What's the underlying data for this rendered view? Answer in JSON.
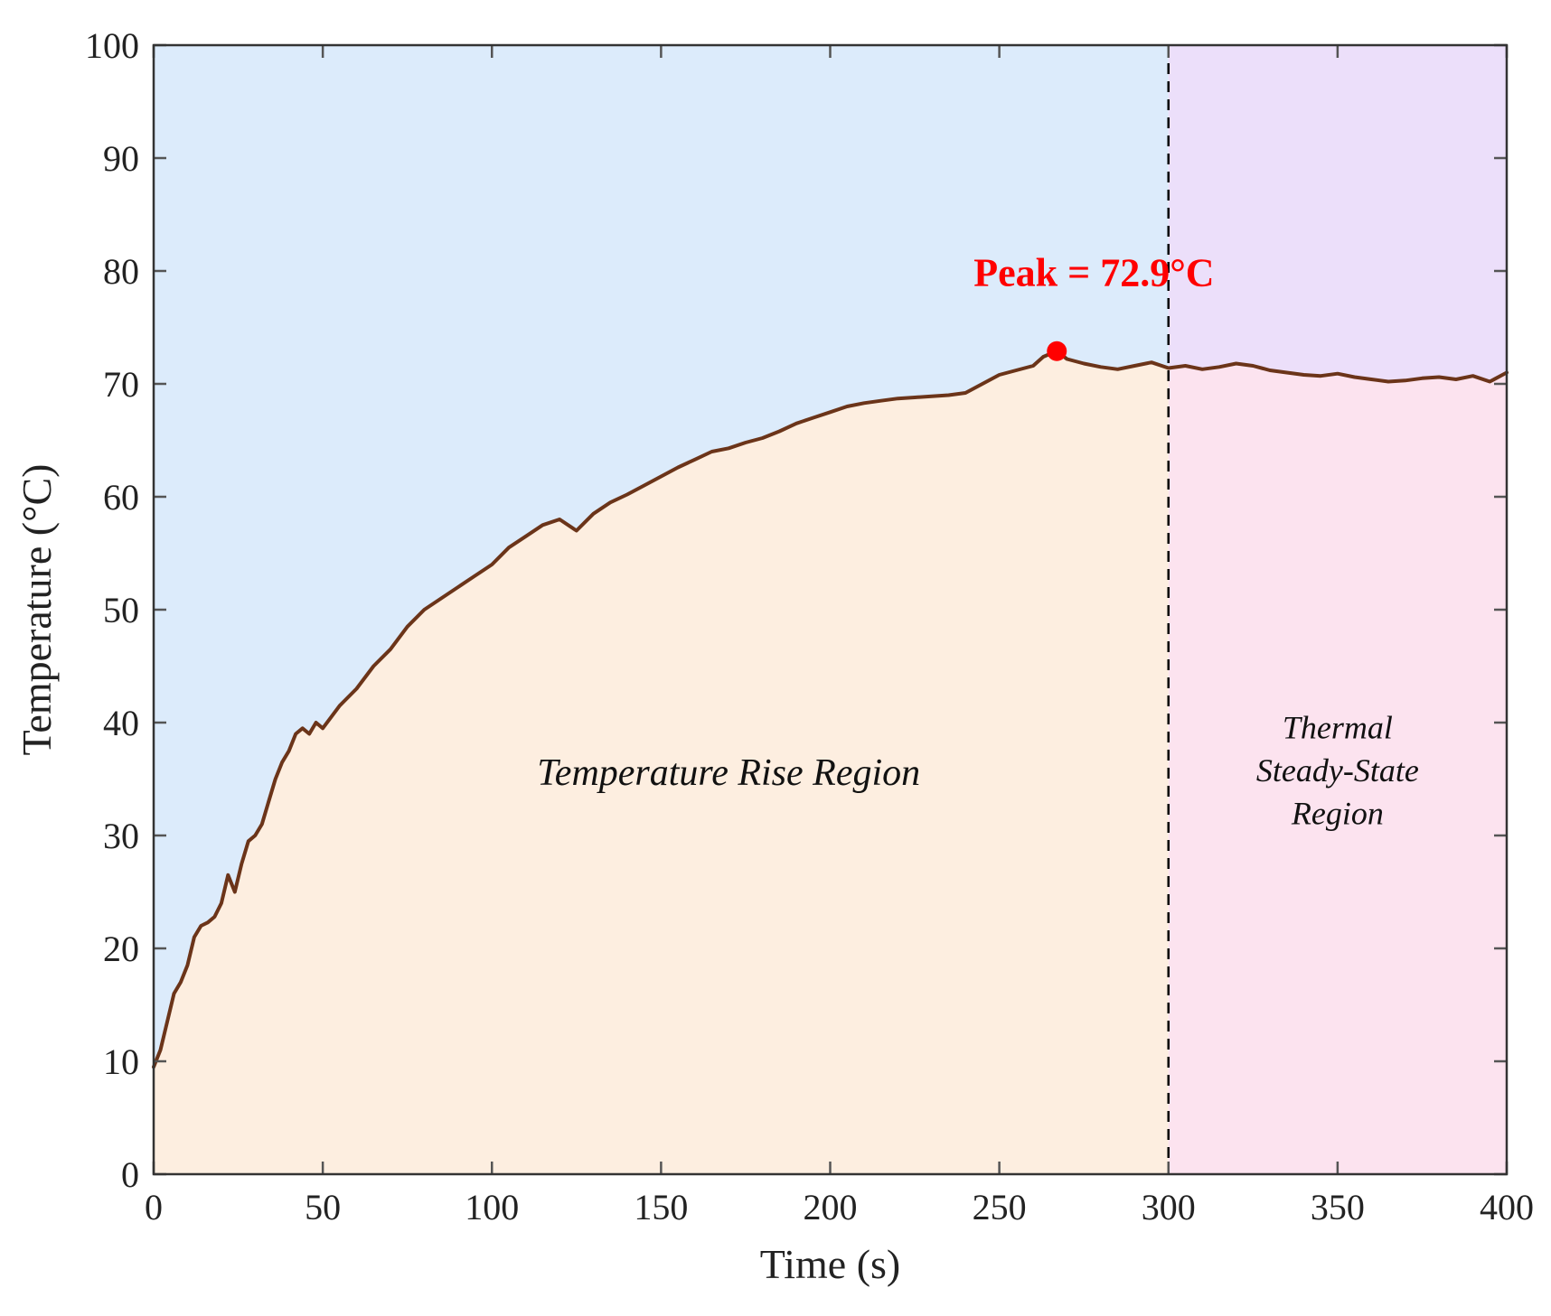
{
  "chart_data": {
    "type": "line",
    "title": "",
    "xlabel": "Time (s)",
    "ylabel": "Temperature (°C)",
    "xlim": [
      0,
      400
    ],
    "ylim": [
      0,
      100
    ],
    "xticks": [
      0,
      50,
      100,
      150,
      200,
      250,
      300,
      350,
      400
    ],
    "yticks": [
      0,
      10,
      20,
      30,
      40,
      50,
      60,
      70,
      80,
      90,
      100
    ],
    "grid": false,
    "series": [
      {
        "name": "Temperature",
        "color": "#6b3419",
        "x": [
          0,
          2,
          4,
          6,
          8,
          10,
          12,
          14,
          16,
          18,
          20,
          22,
          24,
          26,
          28,
          30,
          32,
          34,
          36,
          38,
          40,
          42,
          44,
          46,
          48,
          50,
          55,
          60,
          65,
          70,
          75,
          80,
          85,
          90,
          95,
          100,
          105,
          110,
          115,
          120,
          125,
          130,
          135,
          140,
          145,
          150,
          155,
          160,
          165,
          170,
          175,
          180,
          185,
          190,
          195,
          200,
          205,
          210,
          215,
          220,
          225,
          230,
          235,
          240,
          245,
          250,
          255,
          260,
          263,
          267,
          270,
          275,
          280,
          285,
          290,
          295,
          300,
          305,
          310,
          315,
          320,
          325,
          330,
          335,
          340,
          345,
          350,
          355,
          360,
          365,
          370,
          375,
          380,
          385,
          390,
          395,
          400
        ],
        "y": [
          9.5,
          11,
          13.5,
          16,
          17,
          18.5,
          21,
          22,
          22.3,
          22.8,
          24,
          26.5,
          25,
          27.5,
          29.5,
          30,
          31,
          33,
          35,
          36.5,
          37.5,
          39,
          39.5,
          39,
          40,
          39.5,
          41.5,
          43,
          45,
          46.5,
          48.5,
          50,
          51,
          52,
          53,
          54,
          55.5,
          56.5,
          57.5,
          58,
          57,
          58.5,
          59.5,
          60.2,
          61,
          61.8,
          62.6,
          63.3,
          64,
          64.3,
          64.8,
          65.2,
          65.8,
          66.5,
          67,
          67.5,
          68,
          68.3,
          68.5,
          68.7,
          68.8,
          68.9,
          69,
          69.2,
          70,
          70.8,
          71.2,
          71.6,
          72.4,
          72.9,
          72.2,
          71.8,
          71.5,
          71.3,
          71.6,
          71.9,
          71.4,
          71.6,
          71.3,
          71.5,
          71.8,
          71.6,
          71.2,
          71.0,
          70.8,
          70.7,
          70.9,
          70.6,
          70.4,
          70.2,
          70.3,
          70.5,
          70.6,
          70.4,
          70.7,
          70.2,
          71.0
        ]
      }
    ],
    "vline": {
      "x": 300,
      "style": "dashed",
      "color": "#000000"
    },
    "regions": [
      {
        "name": "Temperature Rise Region",
        "x_range": [
          0,
          300
        ],
        "above_color": "#dcebfb",
        "below_color": "#fdeee0"
      },
      {
        "name": "Thermal Steady-State Region",
        "x_range": [
          300,
          400
        ],
        "above_color": "#ecdffa",
        "below_color": "#fce3ef"
      }
    ],
    "peak": {
      "x": 267,
      "y": 72.9,
      "label": "Peak = 72.9°C",
      "color": "#ff0000"
    },
    "annotations": {
      "rise_region": "Temperature Rise Region",
      "steady_line1": "Thermal",
      "steady_line2": "Steady-State",
      "steady_line3": "Region"
    },
    "frame_color": "#333333",
    "tick_color": "#555555"
  }
}
